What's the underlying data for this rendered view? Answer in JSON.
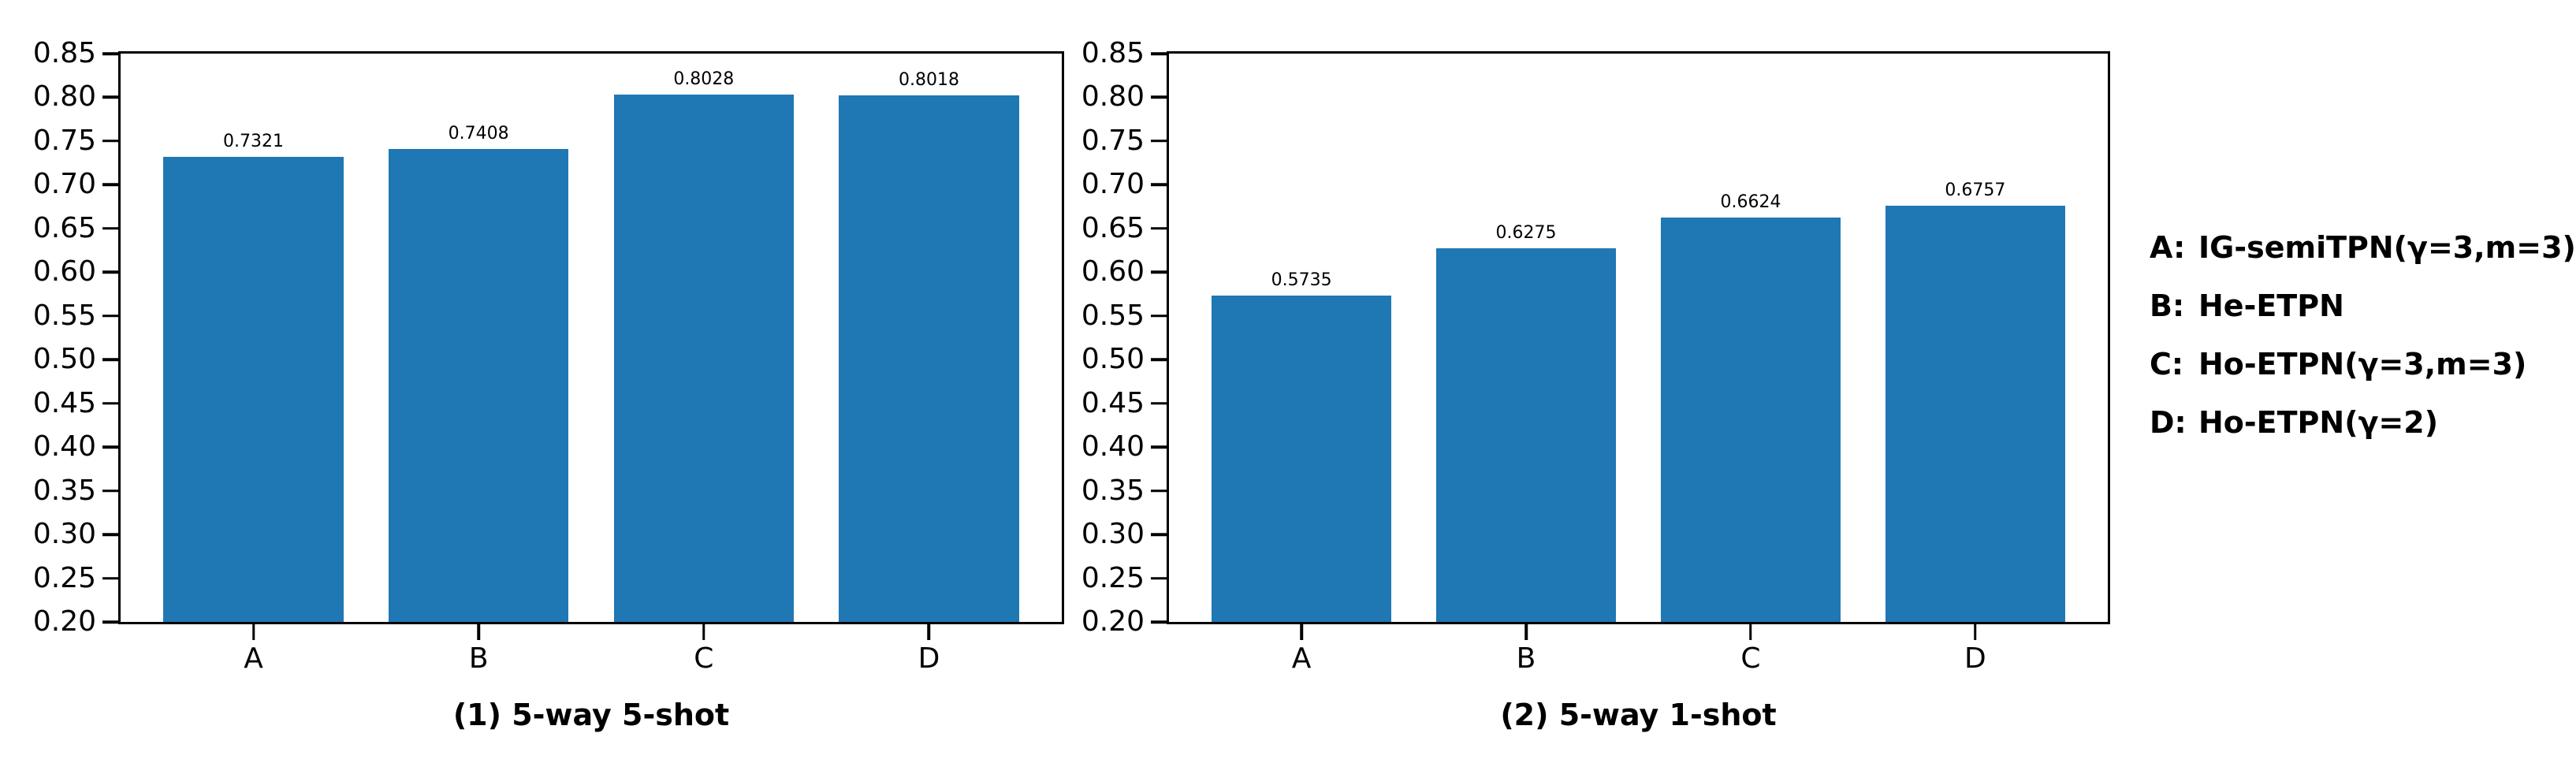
{
  "figure": {
    "background": "#ffffff",
    "bar_color": "#1f77b4",
    "axis_color": "#000000"
  },
  "chart_data": [
    {
      "type": "bar",
      "title": "(1) 5-way 5-shot",
      "categories": [
        "A",
        "B",
        "C",
        "D"
      ],
      "values": [
        0.7321,
        0.7408,
        0.8028,
        0.8018
      ],
      "bar_value_labels": [
        "0.7321",
        "0.7408",
        "0.8028",
        "0.8018"
      ],
      "xlabel": "",
      "ylabel": "",
      "ylim": [
        0.2,
        0.85
      ],
      "ytick_labels": [
        "0.85",
        "0.80",
        "0.75",
        "0.70",
        "0.65",
        "0.60",
        "0.55",
        "0.50",
        "0.45",
        "0.40",
        "0.35",
        "0.30",
        "0.25",
        "0.20"
      ],
      "grid": false,
      "bar_width_ratio": 0.8,
      "legend_position": "none"
    },
    {
      "type": "bar",
      "title": "(2) 5-way 1-shot",
      "categories": [
        "A",
        "B",
        "C",
        "D"
      ],
      "values": [
        0.5735,
        0.6275,
        0.6624,
        0.6757
      ],
      "bar_value_labels": [
        "0.5735",
        "0.6275",
        "0.6624",
        "0.6757"
      ],
      "xlabel": "",
      "ylabel": "",
      "ylim": [
        0.2,
        0.85
      ],
      "ytick_labels": [
        "0.85",
        "0.80",
        "0.75",
        "0.70",
        "0.65",
        "0.60",
        "0.55",
        "0.50",
        "0.45",
        "0.40",
        "0.35",
        "0.30",
        "0.25",
        "0.20"
      ],
      "grid": false,
      "bar_width_ratio": 0.8,
      "legend_position": "right-of-figure"
    }
  ],
  "legend": {
    "entries": [
      {
        "key": "A:",
        "label": "IG-semiTPN(γ=3,m=3)"
      },
      {
        "key": "B:",
        "label": "He-ETPN"
      },
      {
        "key": "C:",
        "label": "Ho-ETPN(γ=3,m=3)"
      },
      {
        "key": "D:",
        "label": "Ho-ETPN(γ=2)"
      }
    ]
  }
}
